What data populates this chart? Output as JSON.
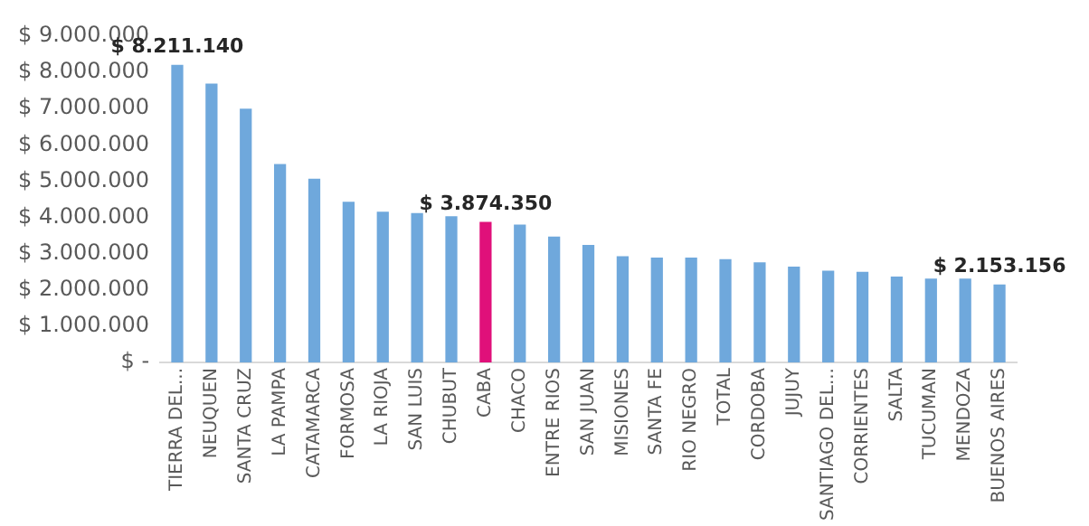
{
  "chart_data": {
    "type": "bar",
    "categories": [
      "TIERRA DEL...",
      "NEUQUEN",
      "SANTA CRUZ",
      "LA PAMPA",
      "CATAMARCA",
      "FORMOSA",
      "LA RIOJA",
      "SAN LUIS",
      "CHUBUT",
      "CABA",
      "CHACO",
      "ENTRE RIOS",
      "SAN JUAN",
      "MISIONES",
      "SANTA FE",
      "RIO NEGRO",
      "TOTAL",
      "CORDOBA",
      "JUJUY",
      "SANTIAGO DEL...",
      "CORRIENTES",
      "SALTA",
      "TUCUMAN",
      "MENDOZA",
      "BUENOS AIRES"
    ],
    "values": [
      8211140,
      7690000,
      7000000,
      5470000,
      5070000,
      4430000,
      4160000,
      4120000,
      4030000,
      3874350,
      3800000,
      3470000,
      3240000,
      2930000,
      2890000,
      2890000,
      2850000,
      2760000,
      2640000,
      2530000,
      2500000,
      2370000,
      2310000,
      2310000,
      2153156
    ],
    "colors": [
      "#6fa8dc",
      "#6fa8dc",
      "#6fa8dc",
      "#6fa8dc",
      "#6fa8dc",
      "#6fa8dc",
      "#6fa8dc",
      "#6fa8dc",
      "#6fa8dc",
      "#e0107a",
      "#6fa8dc",
      "#6fa8dc",
      "#6fa8dc",
      "#6fa8dc",
      "#6fa8dc",
      "#6fa8dc",
      "#6fa8dc",
      "#6fa8dc",
      "#6fa8dc",
      "#6fa8dc",
      "#6fa8dc",
      "#6fa8dc",
      "#6fa8dc",
      "#6fa8dc",
      "#6fa8dc"
    ],
    "value_labels": [
      "$ 8.211.140",
      null,
      null,
      null,
      null,
      null,
      null,
      null,
      null,
      "$ 3.874.350",
      null,
      null,
      null,
      null,
      null,
      null,
      null,
      null,
      null,
      null,
      null,
      null,
      null,
      null,
      "$ 2.153.156"
    ],
    "ylim": [
      0,
      9000000
    ],
    "yticks": [
      {
        "value": 0,
        "label": "$ -"
      },
      {
        "value": 1000000,
        "label": "$ 1.000.000"
      },
      {
        "value": 2000000,
        "label": "$ 2.000.000"
      },
      {
        "value": 3000000,
        "label": "$ 3.000.000"
      },
      {
        "value": 4000000,
        "label": "$ 4.000.000"
      },
      {
        "value": 5000000,
        "label": "$ 5.000.000"
      },
      {
        "value": 6000000,
        "label": "$ 6.000.000"
      },
      {
        "value": 7000000,
        "label": "$ 7.000.000"
      },
      {
        "value": 8000000,
        "label": "$ 8.000.000"
      },
      {
        "value": 9000000,
        "label": "$ 9.000.000"
      }
    ],
    "grid": false,
    "legend": false
  }
}
